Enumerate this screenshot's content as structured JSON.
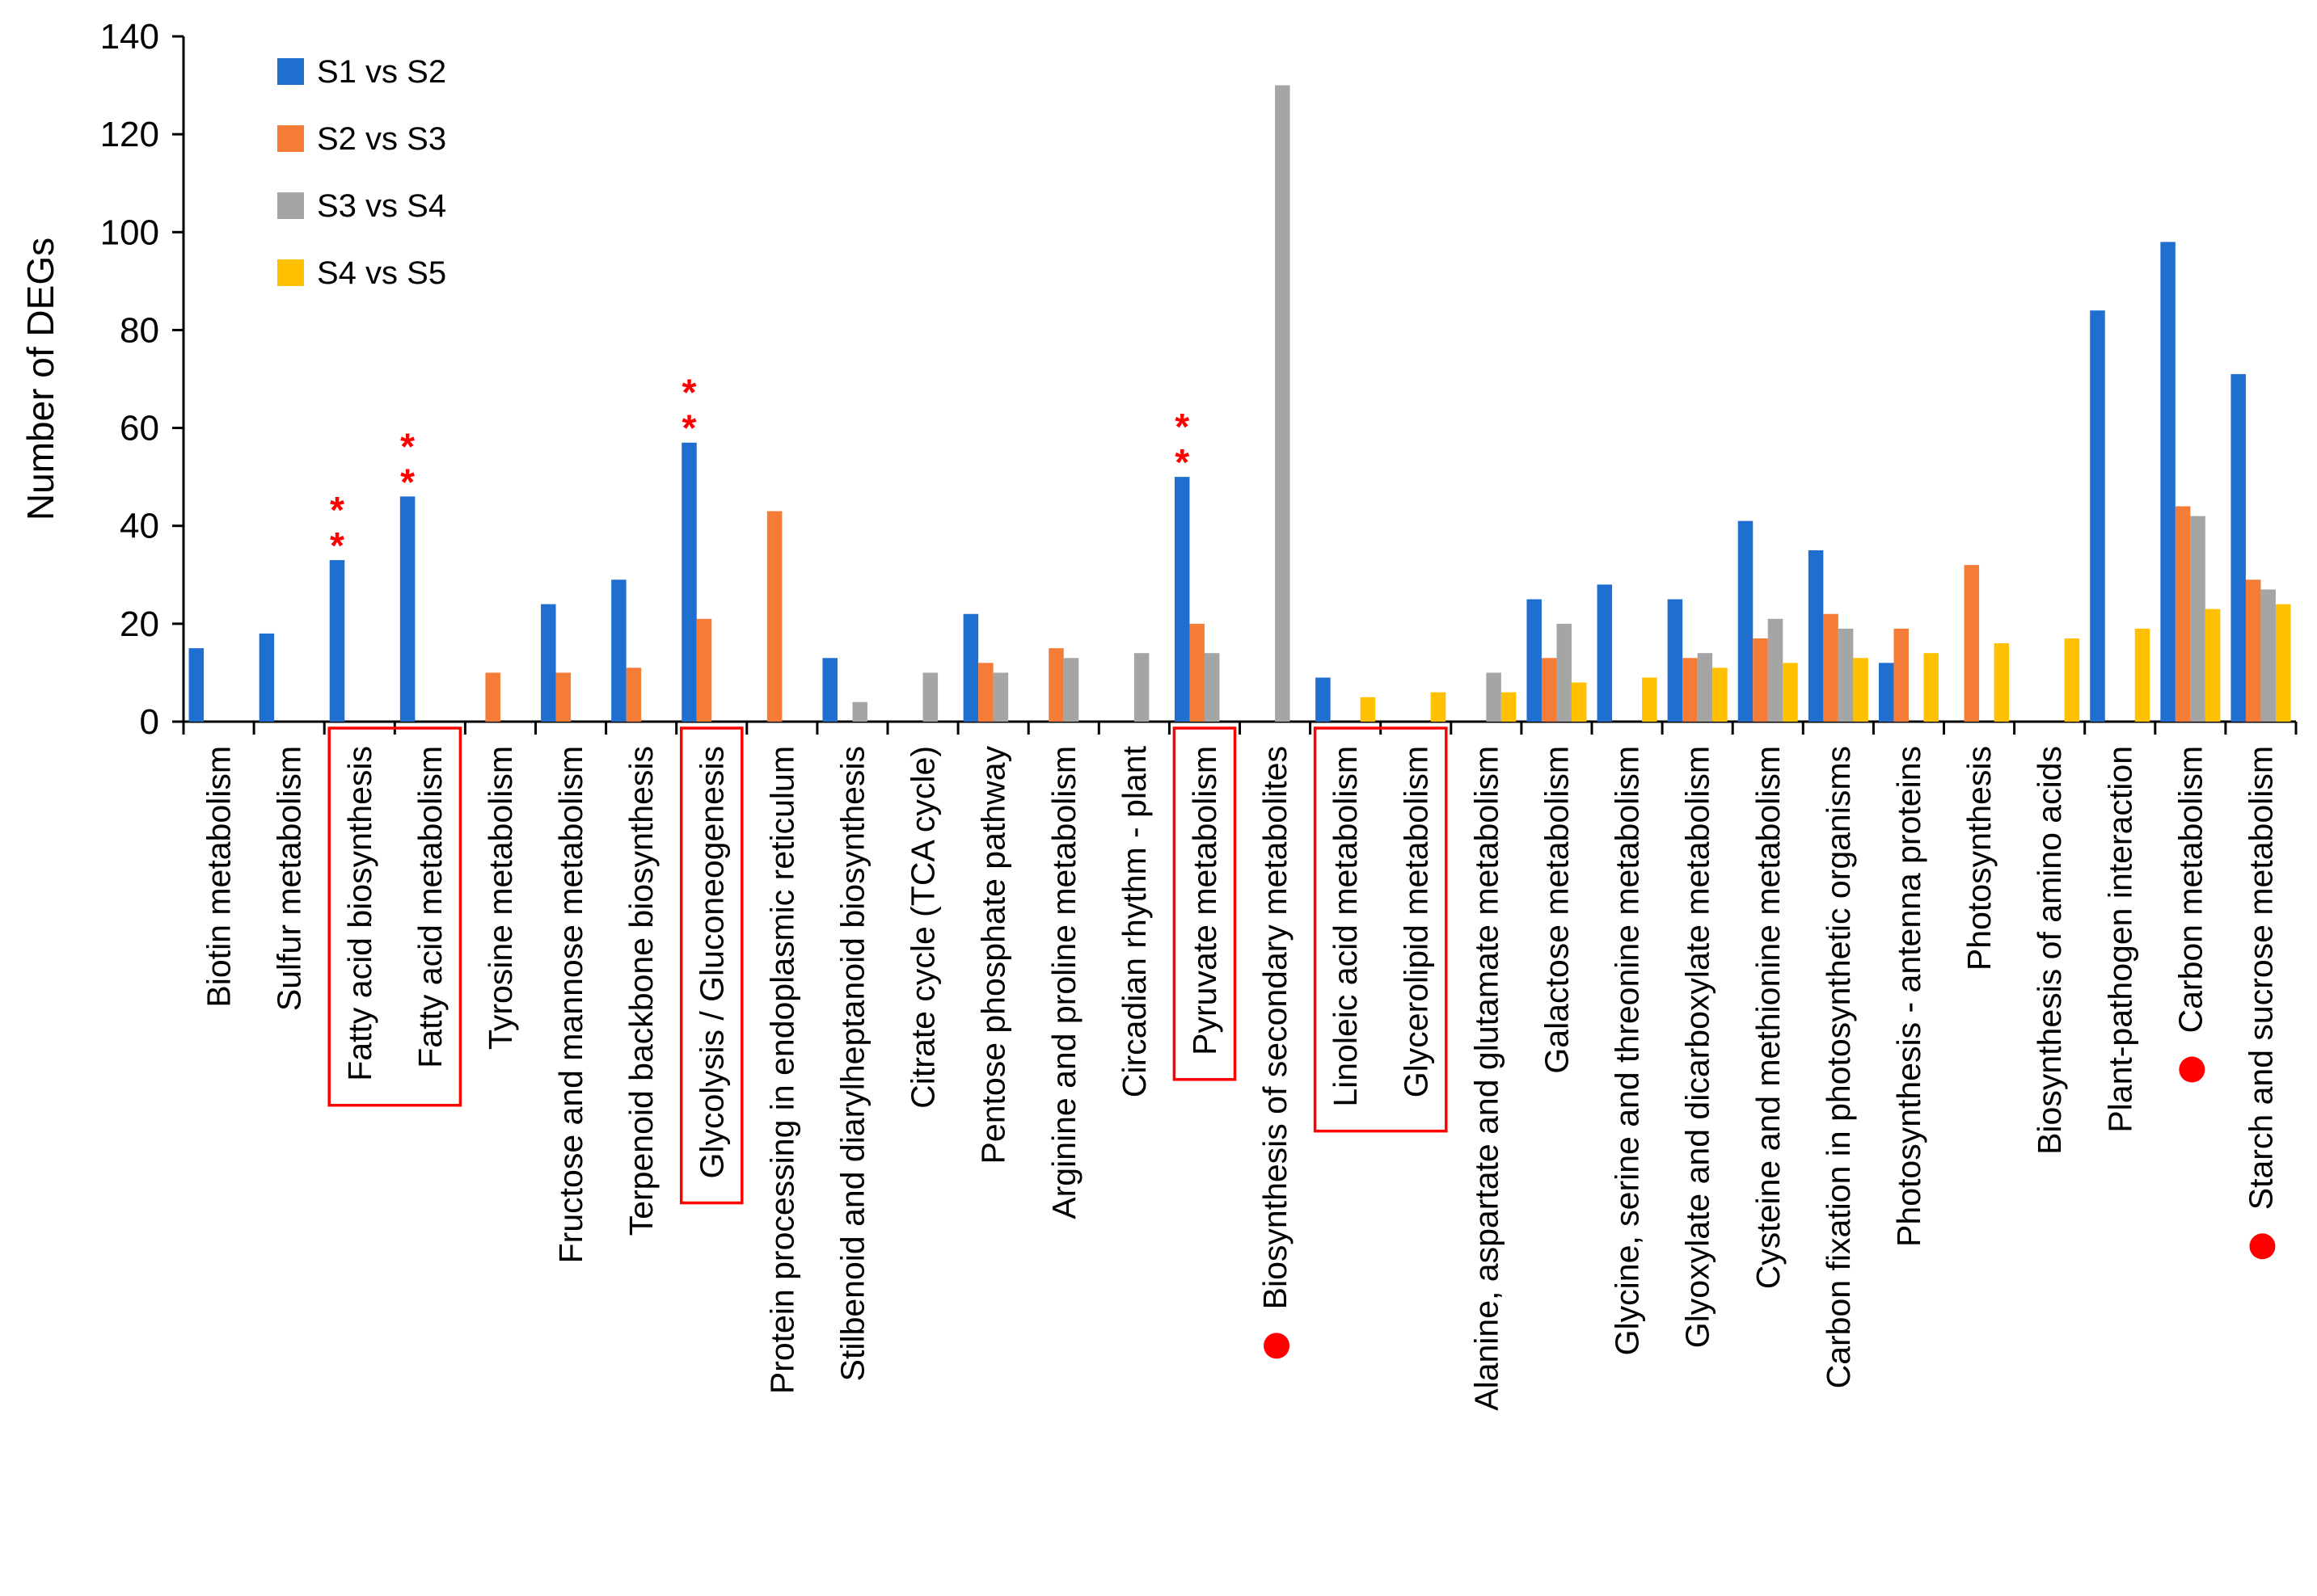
{
  "chart_data": {
    "type": "bar",
    "title": "",
    "xlabel": "",
    "ylabel": "Number of DEGs",
    "ylim": [
      0,
      140
    ],
    "yticks": [
      0,
      20,
      40,
      60,
      80,
      100,
      120,
      140
    ],
    "grid": false,
    "legend_position": "top-left",
    "series": [
      {
        "name": "S1 vs S2",
        "color": "#1f6fd1",
        "values": [
          15,
          18,
          33,
          46,
          0,
          24,
          29,
          57,
          0,
          13,
          0,
          22,
          0,
          0,
          50,
          0,
          9,
          0,
          0,
          25,
          28,
          25,
          41,
          35,
          12,
          0,
          0,
          84,
          98,
          71
        ]
      },
      {
        "name": "S2 vs S3",
        "color": "#f47c36",
        "values": [
          0,
          0,
          0,
          0,
          10,
          10,
          11,
          21,
          43,
          0,
          0,
          12,
          15,
          0,
          20,
          0,
          0,
          0,
          0,
          13,
          0,
          13,
          17,
          22,
          19,
          32,
          0,
          0,
          44,
          29
        ]
      },
      {
        "name": "S3 vs S4",
        "color": "#a5a5a5",
        "values": [
          0,
          0,
          0,
          0,
          0,
          0,
          0,
          0,
          0,
          4,
          10,
          10,
          13,
          14,
          14,
          130,
          0,
          0,
          10,
          20,
          0,
          14,
          21,
          19,
          0,
          0,
          0,
          0,
          42,
          27
        ]
      },
      {
        "name": "S4 vs S5",
        "color": "#ffc000",
        "values": [
          0,
          0,
          0,
          0,
          0,
          0,
          0,
          0,
          0,
          0,
          0,
          0,
          0,
          0,
          0,
          0,
          5,
          6,
          6,
          8,
          9,
          11,
          12,
          13,
          14,
          16,
          17,
          19,
          23,
          24
        ]
      }
    ],
    "categories": [
      "Biotin metabolism",
      "Sulfur metabolism",
      "Fatty acid biosynthesis",
      "Fatty acid metabolism",
      "Tyrosine metabolism",
      "Fructose and mannose metabolism",
      "Terpenoid backbone biosynthesis",
      "Glycolysis / Gluconeogenesis",
      "Protein processing in endoplasmic reticulum",
      "Stilbenoid and diarylheptanoid biosynthesis",
      "Citrate cycle (TCA cycle)",
      "Pentose phosphate pathway",
      "Arginine and proline metabolism",
      "Circadian rhythm - plant",
      "Pyruvate metabolism",
      "Biosynthesis of secondary metabolites",
      "Linoleic acid metabolism",
      "Glycerolipid metabolism",
      "Alanine, aspartate and glutamate metabolism",
      "Galactose metabolism",
      "Glycine, serine and threonine metabolism",
      "Glyoxylate and dicarboxylate metabolism",
      "Cysteine and methionine metabolism",
      "Carbon fixation in photosynthetic organisms",
      "Photosynthesis - antenna proteins",
      "Photosynthesis",
      "Biosynthesis of amino acids",
      "Plant-pathogen interaction",
      "Carbon metabolism",
      "Starch and sucrose metabolism"
    ],
    "annotations": {
      "significance_marks": [
        {
          "category_index": 2,
          "text": "**"
        },
        {
          "category_index": 3,
          "text": "**"
        },
        {
          "category_index": 7,
          "text": "**"
        },
        {
          "category_index": 14,
          "text": "**"
        }
      ],
      "boxed_groups": [
        [
          2,
          3
        ],
        [
          7
        ],
        [
          14
        ],
        [
          16,
          17
        ]
      ],
      "dot_marked": [
        15,
        28,
        29
      ],
      "marker_color": "#ff0000"
    }
  }
}
